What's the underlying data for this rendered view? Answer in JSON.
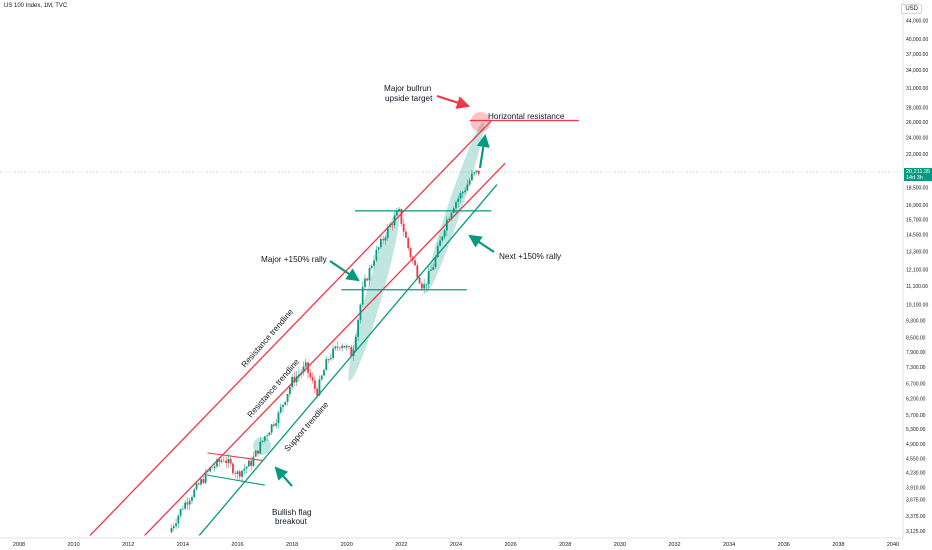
{
  "header": {
    "title": "US 100 Index, 1M, TVC"
  },
  "currency": "USD",
  "last_price": {
    "value": "20,211.35",
    "countdown": "14d 3h"
  },
  "colors": {
    "up": "#089981",
    "down": "#f23645",
    "resistance": "#f23645",
    "support": "#089981",
    "arrow_red": "#f23645",
    "arrow_green": "#089981"
  },
  "chart_data": {
    "type": "candlestick",
    "title": "US 100 Index, 1M, TVC",
    "y_scale": "log",
    "ylim": [
      3000,
      48000
    ],
    "xlim": [
      2008,
      2040
    ],
    "y_ticks": [
      "44,000.00",
      "40,000.00",
      "37,000.00",
      "34,000.00",
      "31,000.00",
      "28,000.00",
      "26,000.00",
      "24,000.00",
      "22,000.00",
      "20,211.35",
      "18,500.00",
      "16,900.00",
      "15,700.00",
      "14,500.00",
      "13,300.00",
      "12,100.00",
      "11,100.00",
      "10,100.00",
      "9,300.00",
      "8,500.00",
      "7,900.00",
      "7,300.00",
      "6,700.00",
      "6,200.00",
      "5,700.00",
      "5,300.00",
      "4,900.00",
      "4,550.00",
      "4,230.00",
      "3,910.00",
      "3,675.00",
      "3,375.00",
      "3,125.00"
    ],
    "x_ticks": [
      "2008",
      "2010",
      "2012",
      "2014",
      "2016",
      "2018",
      "2020",
      "2022",
      "2024",
      "2026",
      "2028",
      "2030",
      "2032",
      "2034",
      "2036",
      "2038",
      "2040"
    ],
    "series_approx": [
      [
        2013.5,
        3100
      ],
      [
        2014.0,
        3550
      ],
      [
        2014.5,
        3900
      ],
      [
        2015.0,
        4300
      ],
      [
        2015.5,
        4550
      ],
      [
        2016.0,
        4200
      ],
      [
        2016.5,
        4450
      ],
      [
        2017.0,
        5100
      ],
      [
        2017.5,
        5700
      ],
      [
        2018.0,
        6800
      ],
      [
        2018.5,
        7300
      ],
      [
        2018.9,
        6400
      ],
      [
        2019.3,
        7600
      ],
      [
        2019.8,
        8300
      ],
      [
        2020.2,
        7800
      ],
      [
        2020.6,
        11000
      ],
      [
        2021.0,
        12900
      ],
      [
        2021.5,
        14900
      ],
      [
        2021.9,
        16400
      ],
      [
        2022.3,
        13200
      ],
      [
        2022.8,
        11000
      ],
      [
        2023.2,
        12500
      ],
      [
        2023.6,
        15300
      ],
      [
        2023.9,
        16900
      ],
      [
        2024.3,
        18300
      ],
      [
        2024.6,
        19700
      ],
      [
        2024.9,
        20211
      ]
    ],
    "trendlines": [
      {
        "label": "Resistance trendline",
        "color": "red",
        "from": [
          2010.6,
          3050
        ],
        "to": [
          2025.3,
          26200
        ]
      },
      {
        "label": "Resistance trendline",
        "color": "red",
        "from": [
          2012.6,
          3050
        ],
        "to": [
          2025.8,
          21000
        ]
      },
      {
        "label": "Support trendline",
        "color": "green",
        "from": [
          2014.6,
          3050
        ],
        "to": [
          2025.5,
          18800
        ]
      }
    ],
    "horizontal_lines": [
      {
        "label": "Horizontal resistance",
        "color": "red",
        "value": 26200,
        "from": 2024.5,
        "to": 2028.5
      },
      {
        "color": "green",
        "value": 16400,
        "from": 2020.3,
        "to": 2025.3
      },
      {
        "color": "green",
        "value": 10900,
        "from": 2019.8,
        "to": 2024.4
      }
    ],
    "flag_lines": [
      {
        "color": "red",
        "from": [
          2014.9,
          4680
        ],
        "to": [
          2016.9,
          4500
        ]
      },
      {
        "color": "green",
        "from": [
          2014.9,
          4170
        ],
        "to": [
          2017.0,
          3960
        ]
      }
    ],
    "annotations": [
      {
        "text": "Major bullrun upside target",
        "lines": [
          "Major bullrun",
          "upside target"
        ]
      },
      {
        "text": "Horizontal resistance"
      },
      {
        "text": "Major +150% rally"
      },
      {
        "text": "Next +150% rally"
      },
      {
        "text": "Resistance trendline"
      },
      {
        "text": "Resistance trendline"
      },
      {
        "text": "Support trendline"
      },
      {
        "text": "Bullish flag breakout",
        "lines": [
          "Bullish flag",
          "breakout"
        ]
      }
    ]
  }
}
